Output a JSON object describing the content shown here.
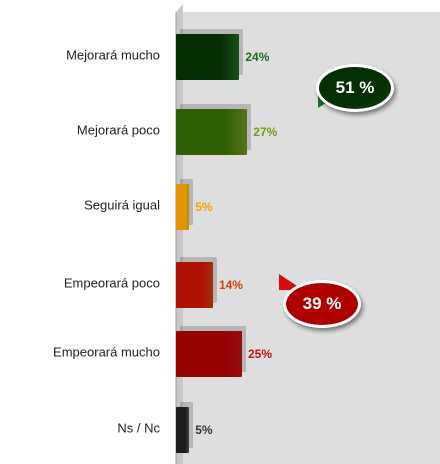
{
  "chart_data": {
    "type": "bar",
    "categories": [
      "Mejorará mucho",
      "Mejorará poco",
      "Seguirá igual",
      "Empeorará poco",
      "Empeorará mucho",
      "Ns / Nc"
    ],
    "values": [
      24,
      27,
      5,
      14,
      25,
      5
    ],
    "value_labels": [
      "24%",
      "27%",
      "5%",
      "14%",
      "25%",
      "5%"
    ],
    "colors": [
      "#1e6b1e",
      "#6f9c1e",
      "#f2c200",
      "#d2420c",
      "#c41414",
      "#555555"
    ],
    "label_colors": [
      "#1e6b1e",
      "#6f9c1e",
      "#f2a400",
      "#d2420c",
      "#c41414",
      "#333333"
    ],
    "xlim": [
      0,
      100
    ],
    "annotations": [
      {
        "text": "51 %",
        "color": "#1f6e1f"
      },
      {
        "text": "39 %",
        "color": "#d40e0e"
      }
    ]
  }
}
